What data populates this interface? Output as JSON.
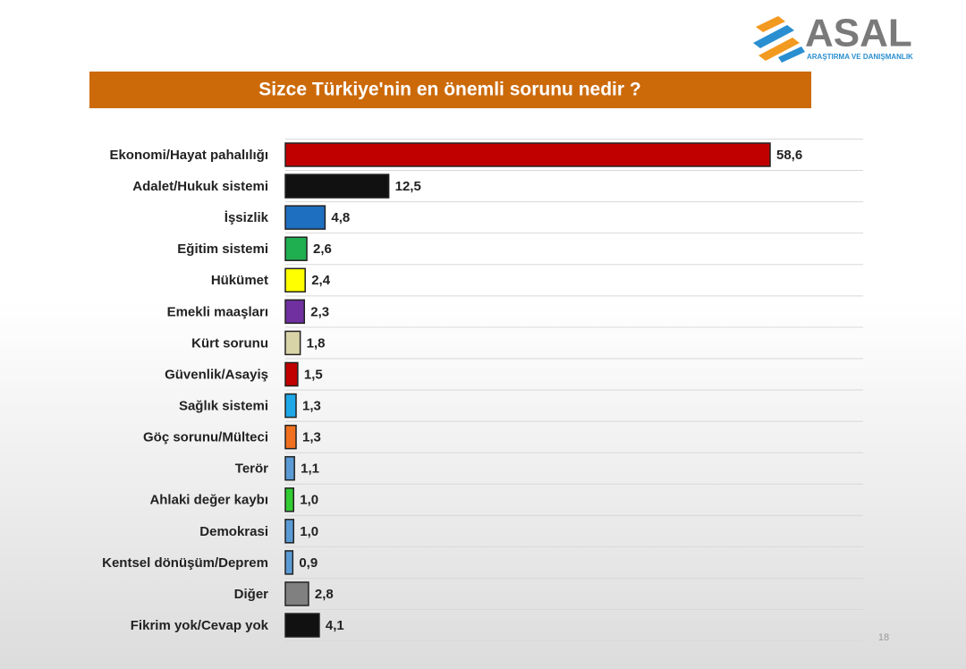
{
  "chart_data": {
    "type": "bar",
    "orientation": "horizontal",
    "title": "Sizce Türkiye'nin en önemli sorunu nedir ?",
    "categories": [
      "Ekonomi/Hayat pahalılığı",
      "Adalet/Hukuk sistemi",
      "İşsizlik",
      "Eğitim sistemi",
      "Hükümet",
      "Emekli maaşları",
      "Kürt sorunu",
      "Güvenlik/Asayiş",
      "Sağlık sistemi",
      "Göç sorunu/Mülteci",
      "Terör",
      "Ahlaki değer kaybı",
      "Demokrasi",
      "Kentsel dönüşüm/Deprem",
      "Diğer",
      "Fikrim yok/Cevap yok"
    ],
    "values": [
      58.6,
      12.5,
      4.8,
      2.6,
      2.4,
      2.3,
      1.8,
      1.5,
      1.3,
      1.3,
      1.1,
      1.0,
      1.0,
      0.9,
      2.8,
      4.1
    ],
    "value_labels": [
      "58,6",
      "12,5",
      "4,8",
      "2,6",
      "2,4",
      "2,3",
      "1,8",
      "1,5",
      "1,3",
      "1,3",
      "1,1",
      "1,0",
      "1,0",
      "0,9",
      "2,8",
      "4,1"
    ],
    "colors": [
      "#c00000",
      "#111111",
      "#1f6fc0",
      "#1fae50",
      "#ffff00",
      "#7030a0",
      "#d9d4a8",
      "#c00000",
      "#1fa8e8",
      "#f07020",
      "#5b9bd5",
      "#33cc33",
      "#5b9bd5",
      "#5b9bd5",
      "#808080",
      "#111111"
    ],
    "grid": true
  },
  "logo": {
    "name": "ASAL",
    "tagline": "ARAŞTIRMA VE DANIŞMANLIK"
  },
  "page_number": "18"
}
